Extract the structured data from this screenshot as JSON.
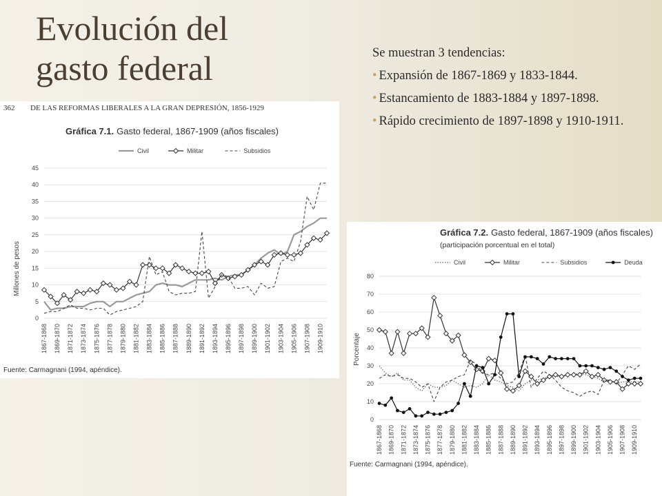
{
  "slide": {
    "title_line1": "Evolución del",
    "title_line2": "gasto federal",
    "intro": "Se muestran 3 tendencias:",
    "bullets": [
      "Expansión de 1867-1869 y 1833-1844.",
      "Estancamiento de 1883-1884 y 1897-1898.",
      "Rápido crecimiento de 1897-1898 y 1910-1911."
    ],
    "bullet_color": "#c9a55a",
    "title_color": "#4a3f30"
  },
  "chart_data": [
    {
      "type": "line",
      "page_number": "362",
      "running_header": "DE LAS REFORMAS LIBERALES A LA GRAN DEPRESIÓN, 1856-1929",
      "title_bold": "Gráfica 7.1.",
      "title_rest": "Gasto federal, 1867-1909 (años fiscales)",
      "ylabel": "Millones de pesos",
      "ylim": [
        0,
        45
      ],
      "yticks": [
        0,
        5,
        10,
        15,
        20,
        25,
        30,
        35,
        40,
        45
      ],
      "categories": [
        "1867-1868",
        "1869-1870",
        "1871-1872",
        "1873-1874",
        "1875-1876",
        "1877-1878",
        "1879-1880",
        "1881-1882",
        "1883-1884",
        "1885-1886",
        "1887-1888",
        "1889-1890",
        "1891-1892",
        "1893-1894",
        "1895-1896",
        "1897-1898",
        "1899-1900",
        "1901-1902",
        "1903-1904",
        "1905-1906",
        "1907-1908",
        "1909-1910"
      ],
      "x": [
        1867,
        1868,
        1869,
        1870,
        1871,
        1872,
        1873,
        1874,
        1875,
        1876,
        1877,
        1878,
        1879,
        1880,
        1881,
        1882,
        1883,
        1884,
        1885,
        1886,
        1887,
        1888,
        1889,
        1890,
        1891,
        1892,
        1893,
        1894,
        1895,
        1896,
        1897,
        1898,
        1899,
        1900,
        1901,
        1902,
        1903,
        1904,
        1905,
        1906,
        1907,
        1908,
        1909,
        1910
      ],
      "legend": "top",
      "grid": "horizontal",
      "series": [
        {
          "name": "Civil",
          "style": "solid",
          "values": [
            5,
            2.5,
            3,
            3,
            3.5,
            3.5,
            3.5,
            4.5,
            5,
            5,
            3.5,
            5,
            5,
            6,
            7,
            7.5,
            8,
            10,
            10.5,
            10,
            10,
            9.5,
            10.5,
            11.5,
            11.5,
            11.5,
            12,
            11.5,
            12.5,
            13,
            13,
            14.5,
            16,
            18,
            19.5,
            20.5,
            19,
            20,
            25,
            26,
            27.5,
            28.5,
            30,
            30
          ]
        },
        {
          "name": "Militar",
          "style": "diamond",
          "values": [
            8.5,
            6.5,
            4.5,
            7,
            5.5,
            8,
            7.5,
            8.5,
            8,
            10.5,
            10,
            8.5,
            9,
            11,
            10,
            16,
            16,
            15,
            15,
            13.5,
            16,
            15,
            14,
            13.5,
            13.5,
            14,
            10.5,
            13,
            12,
            12.5,
            13,
            14.5,
            16,
            17,
            16,
            19,
            19.5,
            19,
            19,
            19.5,
            22,
            24,
            23.5,
            25.5
          ]
        },
        {
          "name": "Subsidios",
          "style": "dashed",
          "values": [
            1.5,
            2,
            2,
            3,
            4,
            3,
            3,
            2.5,
            3,
            3,
            1,
            2,
            2.5,
            3,
            3.5,
            5,
            18.5,
            13,
            14,
            8,
            7,
            7.5,
            7.5,
            8,
            26,
            6,
            9.5,
            13,
            12.5,
            9,
            9,
            9.5,
            7,
            10.5,
            9,
            9.5,
            17,
            18,
            17,
            23,
            36.5,
            32.5,
            40.5,
            40.5
          ]
        }
      ],
      "source": "Fuente: Carmagnani (1994, apéndice)."
    },
    {
      "type": "line",
      "title_bold": "Gráfica 7.2.",
      "title_rest": "Gasto federal, 1867-1909 (años fiscales)",
      "subtitle": "(participación porcentual en el total)",
      "ylabel": "Porcentaje",
      "ylim": [
        0,
        80
      ],
      "yticks": [
        0,
        10,
        20,
        30,
        40,
        50,
        60,
        70,
        80
      ],
      "categories": [
        "1867-1868",
        "1869-1870",
        "1871-1872",
        "1873-1874",
        "1875-1876",
        "1877-1878",
        "1879-1880",
        "1881-1882",
        "1883-1884",
        "1885-1886",
        "1887-1888",
        "1889-1890",
        "1891-1892",
        "1893-1894",
        "1895-1896",
        "1897-1898",
        "1899-1900",
        "1901-1902",
        "1903-1904",
        "1905-1906",
        "1907-1908",
        "1909-1910"
      ],
      "x": [
        1867,
        1868,
        1869,
        1870,
        1871,
        1872,
        1873,
        1874,
        1875,
        1876,
        1877,
        1878,
        1879,
        1880,
        1881,
        1882,
        1883,
        1884,
        1885,
        1886,
        1887,
        1888,
        1889,
        1890,
        1891,
        1892,
        1893,
        1894,
        1895,
        1896,
        1897,
        1898,
        1899,
        1900,
        1901,
        1902,
        1903,
        1904,
        1905,
        1906,
        1907,
        1908,
        1909,
        1910
      ],
      "legend": "top",
      "grid": "horizontal",
      "series": [
        {
          "name": "Civil",
          "style": "dotted",
          "values": [
            30,
            26,
            24,
            26,
            22,
            22,
            18,
            16,
            20,
            18,
            18,
            19,
            22,
            20,
            18,
            19,
            18,
            20,
            25,
            22,
            21,
            19,
            18,
            16,
            20,
            22,
            22,
            23,
            24,
            24,
            24,
            25,
            25,
            26,
            25,
            24,
            23,
            21,
            22,
            20,
            21,
            21,
            21,
            21
          ]
        },
        {
          "name": "Militar",
          "style": "diamond",
          "values": [
            50,
            49,
            37,
            49,
            37,
            48,
            48,
            51,
            46,
            68,
            58,
            48,
            44,
            47,
            36,
            32,
            28,
            27,
            34,
            33,
            26,
            17,
            16,
            19,
            27,
            24,
            20,
            22,
            24,
            25,
            24,
            25,
            25,
            25,
            27,
            24,
            25,
            22,
            21,
            21,
            17,
            20,
            20,
            20
          ]
        },
        {
          "name": "Subsidios",
          "style": "dashed",
          "values": [
            23,
            25,
            24,
            25,
            23,
            23,
            21,
            18,
            20,
            10,
            18,
            21,
            22,
            24,
            25,
            33,
            31,
            26,
            25,
            26,
            23,
            20,
            21,
            26,
            36,
            18,
            23,
            27,
            25,
            22,
            18,
            16,
            15,
            13,
            15,
            16,
            14,
            22,
            22,
            20,
            25,
            30,
            28,
            31
          ]
        },
        {
          "name": "Deuda",
          "style": "dots",
          "values": [
            9,
            8,
            12,
            5,
            4,
            6,
            2,
            2,
            4,
            3,
            3,
            4,
            5,
            9,
            20,
            13,
            30,
            29,
            20,
            25,
            46,
            59,
            59,
            24,
            35,
            35,
            34,
            31,
            35,
            34,
            34,
            34,
            34,
            30,
            30,
            30,
            29,
            28,
            29,
            27,
            24,
            22,
            23,
            23
          ]
        }
      ],
      "source": "Fuente: Carmagnani (1994, apéndice)."
    }
  ]
}
